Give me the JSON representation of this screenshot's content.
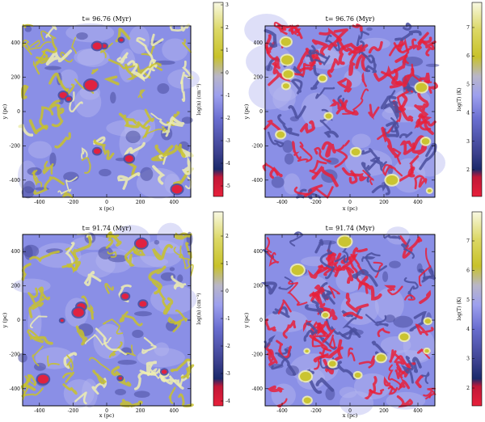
{
  "panels": [
    {
      "title": "t= 96.76 (Myr)",
      "xlabel": "x (pc)",
      "ylabel": "y (pc)",
      "xticks": [
        "-400",
        "-200",
        "0",
        "200",
        "400"
      ],
      "yticks": [
        "400",
        "200",
        "0",
        "-200",
        "-400"
      ],
      "field": "density"
    },
    {
      "title": "t= 96.76 (Myr)",
      "xlabel": "x (pc)",
      "ylabel": "y (pc)",
      "xticks": [
        "-400",
        "-200",
        "0",
        "200",
        "400"
      ],
      "yticks": [
        "400",
        "200",
        "0",
        "-200",
        "-400"
      ],
      "field": "temperature"
    },
    {
      "title": "t= 91.74 (Myr)",
      "xlabel": "x (pc)",
      "ylabel": "y (pc)",
      "xticks": [
        "-400",
        "-200",
        "0",
        "200",
        "400"
      ],
      "yticks": [
        "400",
        "200",
        "0",
        "-200",
        "-400"
      ],
      "field": "density"
    },
    {
      "title": "t= 91.74 (Myr)",
      "xlabel": "x (pc)",
      "ylabel": "y (pc)",
      "xticks": [
        "-400",
        "-200",
        "0",
        "200",
        "400"
      ],
      "yticks": [
        "400",
        "200",
        "0",
        "-200",
        "-400"
      ],
      "field": "temperature"
    }
  ],
  "colorbars": [
    {
      "label": "log(n) (cm⁻³)",
      "ticks": [
        "3",
        "2",
        "1",
        "0",
        "-1",
        "-2",
        "-3",
        "-4",
        "-5"
      ]
    },
    {
      "label": "log(T) (K)",
      "ticks": [
        "7",
        "6",
        "5",
        "4",
        "3",
        "2"
      ]
    },
    {
      "label": "log(n) (cm⁻³)",
      "ticks": [
        "2",
        "1",
        "0",
        "-1",
        "-2",
        "-3",
        "-4"
      ]
    },
    {
      "label": "log(T) (K)",
      "ticks": [
        "7",
        "6",
        "5",
        "4",
        "3",
        "2"
      ]
    }
  ],
  "colors": {
    "base": "#8a8fe6",
    "light": "#b6b8ef",
    "dark": "#4a4f9e",
    "yellow": "#c8c22a",
    "paleyellow": "#efefb0",
    "red": "#e8203a"
  }
}
